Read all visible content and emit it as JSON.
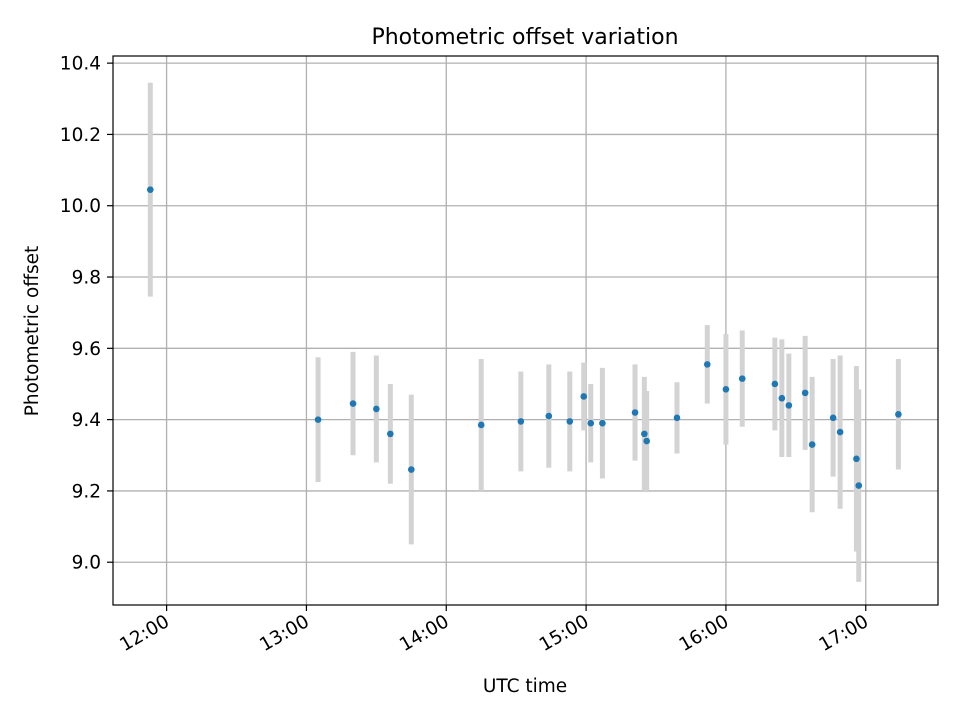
{
  "chart_data": {
    "type": "scatter",
    "title": "Photometric offset variation",
    "xlabel": "UTC time",
    "ylabel": "Photometric offset",
    "x_unit": "UTC hh:mm",
    "xlim": [
      "11:37",
      "17:31"
    ],
    "ylim": [
      8.88,
      10.42
    ],
    "x_ticks": [
      "12:00",
      "13:00",
      "14:00",
      "15:00",
      "16:00",
      "17:00"
    ],
    "y_ticks": [
      "9.0",
      "9.2",
      "9.4",
      "9.6",
      "9.8",
      "10.0",
      "10.2",
      "10.4"
    ],
    "grid": true,
    "legend": "none",
    "colors": {
      "marker": "#1f77b4",
      "errorbar": "#d3d3d3",
      "grid": "#b0b0b0",
      "axes": "#000000"
    },
    "series": [
      {
        "x": [
          "11:53",
          "13:05",
          "13:20",
          "13:30",
          "13:36",
          "13:45",
          "14:15",
          "14:32",
          "14:44",
          "14:53",
          "14:59",
          "15:02",
          "15:07",
          "15:21",
          "15:25",
          "15:26",
          "15:39",
          "15:52",
          "16:00",
          "16:07",
          "16:21",
          "16:24",
          "16:27",
          "16:34",
          "16:37",
          "16:46",
          "16:49",
          "16:56",
          "16:57",
          "17:14"
        ],
        "y": [
          10.045,
          9.4,
          9.445,
          9.43,
          9.36,
          9.26,
          9.385,
          9.395,
          9.41,
          9.395,
          9.465,
          9.39,
          9.39,
          9.42,
          9.36,
          9.34,
          9.405,
          9.555,
          9.485,
          9.515,
          9.5,
          9.46,
          9.44,
          9.475,
          9.33,
          9.405,
          9.365,
          9.29,
          9.215,
          9.415
        ],
        "err": [
          0.3,
          0.175,
          0.145,
          0.15,
          0.14,
          0.21,
          0.185,
          0.14,
          0.145,
          0.14,
          0.095,
          0.11,
          0.155,
          0.135,
          0.16,
          0.14,
          0.1,
          0.11,
          0.155,
          0.135,
          0.13,
          0.165,
          0.145,
          0.16,
          0.19,
          0.165,
          0.215,
          0.26,
          0.27,
          0.155
        ]
      }
    ]
  }
}
